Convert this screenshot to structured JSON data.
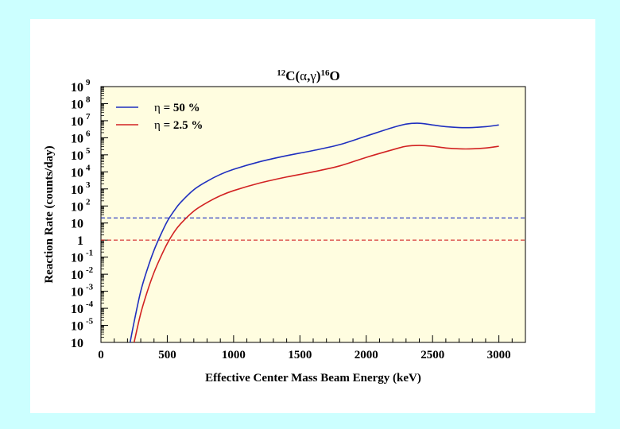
{
  "colors": {
    "page_background": "#ccffff",
    "slide_background": "#ffffff",
    "plot_background": "#fffde0",
    "eta50": "#1f2fbf",
    "eta2_5": "#d22222"
  },
  "chart_data": {
    "type": "line",
    "title": {
      "pre_sup": "12",
      "main": "C(",
      "alpha": "α",
      "comma": ",",
      "gamma": "γ",
      "close": ")",
      "post_sup": "16",
      "post": "O"
    },
    "xlabel": "Effective Center Mass Beam Energy (keV)",
    "ylabel": "Reaction Rate (counts/day)",
    "xlim": [
      0,
      3200
    ],
    "ylim_log10": [
      -6,
      9
    ],
    "x_ticks": [
      {
        "value": 0,
        "label": "0"
      },
      {
        "value": 500,
        "label": "500"
      },
      {
        "value": 1000,
        "label": "1000"
      },
      {
        "value": 1500,
        "label": "1500"
      },
      {
        "value": 2000,
        "label": "2000"
      },
      {
        "value": 2500,
        "label": "2500"
      },
      {
        "value": 3000,
        "label": "3000"
      }
    ],
    "y_ticks": [
      {
        "exp": 9,
        "base": "10",
        "sup": "9"
      },
      {
        "exp": 8,
        "base": "10",
        "sup": "8"
      },
      {
        "exp": 7,
        "base": "10",
        "sup": "7"
      },
      {
        "exp": 6,
        "base": "10",
        "sup": "6"
      },
      {
        "exp": 5,
        "base": "10",
        "sup": "5"
      },
      {
        "exp": 4,
        "base": "10",
        "sup": "4"
      },
      {
        "exp": 3,
        "base": "10",
        "sup": "3"
      },
      {
        "exp": 2,
        "base": "10",
        "sup": "2"
      },
      {
        "exp": 1,
        "base": "10",
        "sup": ""
      },
      {
        "exp": 0,
        "base": "1",
        "sup": ""
      },
      {
        "exp": -1,
        "base": "10",
        "sup": "-1"
      },
      {
        "exp": -2,
        "base": "10",
        "sup": "-2"
      },
      {
        "exp": -3,
        "base": "10",
        "sup": "-3"
      },
      {
        "exp": -4,
        "base": "10",
        "sup": "-4"
      },
      {
        "exp": -5,
        "base": "10",
        "sup": "-5"
      },
      {
        "exp": -6,
        "base": "10",
        "sup": ""
      }
    ],
    "legend": {
      "placement": "top-left",
      "entries": [
        {
          "symbol": "η",
          "text": " = 50 %",
          "color_key": "eta50"
        },
        {
          "symbol": "η",
          "text": " = 2.5 %",
          "color_key": "eta2_5"
        }
      ]
    },
    "series": [
      {
        "name": "η = 50 %",
        "color_key": "eta50",
        "log10_rate": [
          {
            "x": 220,
            "y": -6.0
          },
          {
            "x": 250,
            "y": -4.8
          },
          {
            "x": 300,
            "y": -3.0
          },
          {
            "x": 350,
            "y": -1.7
          },
          {
            "x": 400,
            "y": -0.6
          },
          {
            "x": 450,
            "y": 0.3
          },
          {
            "x": 500,
            "y": 1.1
          },
          {
            "x": 550,
            "y": 1.7
          },
          {
            "x": 600,
            "y": 2.2
          },
          {
            "x": 700,
            "y": 2.95
          },
          {
            "x": 800,
            "y": 3.45
          },
          {
            "x": 900,
            "y": 3.85
          },
          {
            "x": 1000,
            "y": 4.15
          },
          {
            "x": 1200,
            "y": 4.6
          },
          {
            "x": 1400,
            "y": 4.95
          },
          {
            "x": 1600,
            "y": 5.25
          },
          {
            "x": 1800,
            "y": 5.6
          },
          {
            "x": 2000,
            "y": 6.1
          },
          {
            "x": 2200,
            "y": 6.6
          },
          {
            "x": 2300,
            "y": 6.8
          },
          {
            "x": 2400,
            "y": 6.85
          },
          {
            "x": 2500,
            "y": 6.75
          },
          {
            "x": 2600,
            "y": 6.65
          },
          {
            "x": 2700,
            "y": 6.6
          },
          {
            "x": 2800,
            "y": 6.6
          },
          {
            "x": 2900,
            "y": 6.65
          },
          {
            "x": 3000,
            "y": 6.75
          }
        ]
      },
      {
        "name": "η = 2.5 %",
        "color_key": "eta2_5",
        "log10_rate": [
          {
            "x": 250,
            "y": -6.0
          },
          {
            "x": 300,
            "y": -4.3
          },
          {
            "x": 350,
            "y": -3.0
          },
          {
            "x": 400,
            "y": -1.9
          },
          {
            "x": 450,
            "y": -1.0
          },
          {
            "x": 500,
            "y": -0.2
          },
          {
            "x": 550,
            "y": 0.45
          },
          {
            "x": 600,
            "y": 0.95
          },
          {
            "x": 700,
            "y": 1.7
          },
          {
            "x": 800,
            "y": 2.2
          },
          {
            "x": 900,
            "y": 2.6
          },
          {
            "x": 1000,
            "y": 2.9
          },
          {
            "x": 1200,
            "y": 3.35
          },
          {
            "x": 1400,
            "y": 3.7
          },
          {
            "x": 1600,
            "y": 4.0
          },
          {
            "x": 1800,
            "y": 4.35
          },
          {
            "x": 2000,
            "y": 4.85
          },
          {
            "x": 2200,
            "y": 5.3
          },
          {
            "x": 2300,
            "y": 5.5
          },
          {
            "x": 2400,
            "y": 5.55
          },
          {
            "x": 2500,
            "y": 5.5
          },
          {
            "x": 2600,
            "y": 5.4
          },
          {
            "x": 2700,
            "y": 5.35
          },
          {
            "x": 2800,
            "y": 5.35
          },
          {
            "x": 2900,
            "y": 5.4
          },
          {
            "x": 3000,
            "y": 5.5
          }
        ]
      }
    ],
    "reference_lines": [
      {
        "name": "η = 50 % threshold",
        "log10_rate": 1.3,
        "style": "dashed",
        "color_key": "eta50"
      },
      {
        "name": "η = 2.5 % threshold",
        "log10_rate": 0.0,
        "style": "dashed",
        "color_key": "eta2_5"
      }
    ]
  }
}
